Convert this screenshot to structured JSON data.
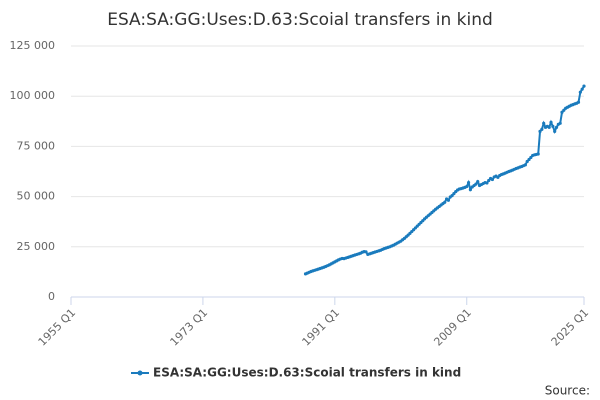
{
  "chart_data": {
    "type": "line",
    "title": "ESA:SA:GG:Uses:D.63:Scoial transfers in kind",
    "source": "Source:",
    "xlim": [
      1955,
      2025
    ],
    "xticks": [
      {
        "value": 1955,
        "label": "1955 Q1"
      },
      {
        "value": 1973,
        "label": "1973 Q1"
      },
      {
        "value": 1991,
        "label": "1991 Q1"
      },
      {
        "value": 2009,
        "label": "2009 Q1"
      },
      {
        "value": 2025,
        "label": "2025 Q1"
      }
    ],
    "ylim": [
      0,
      125000
    ],
    "yticks": [
      0,
      {
        "value": 25000,
        "label": "25 000"
      },
      {
        "value": 50000,
        "label": "50 000"
      },
      {
        "value": 75000,
        "label": "75 000"
      },
      {
        "value": 100000,
        "label": "100 000"
      },
      {
        "value": 125000,
        "label": "125 000"
      }
    ],
    "grid": true,
    "legend": "bottom",
    "x": [
      1987,
      1987.25,
      1987.5,
      1987.75,
      1988,
      1988.25,
      1988.5,
      1988.75,
      1989,
      1989.25,
      1989.5,
      1989.75,
      1990,
      1990.25,
      1990.5,
      1990.75,
      1991,
      1991.25,
      1991.5,
      1991.75,
      1992,
      1992.25,
      1992.5,
      1992.75,
      1993,
      1993.25,
      1993.5,
      1993.75,
      1994,
      1994.25,
      1994.5,
      1994.75,
      1995,
      1995.25,
      1995.5,
      1995.75,
      1996,
      1996.25,
      1996.5,
      1996.75,
      1997,
      1997.25,
      1997.5,
      1997.75,
      1998,
      1998.25,
      1998.5,
      1998.75,
      1999,
      1999.25,
      1999.5,
      1999.75,
      2000,
      2000.25,
      2000.5,
      2000.75,
      2001,
      2001.25,
      2001.5,
      2001.75,
      2002,
      2002.25,
      2002.5,
      2002.75,
      2003,
      2003.25,
      2003.5,
      2003.75,
      2004,
      2004.25,
      2004.5,
      2004.75,
      2005,
      2005.25,
      2005.5,
      2005.75,
      2006,
      2006.25,
      2006.5,
      2006.75,
      2007,
      2007.25,
      2007.5,
      2007.75,
      2008,
      2008.25,
      2008.5,
      2008.75,
      2009,
      2009.25,
      2009.5,
      2009.75,
      2010,
      2010.25,
      2010.5,
      2010.75,
      2011,
      2011.25,
      2011.5,
      2011.75,
      2012,
      2012.25,
      2012.5,
      2012.75,
      2013,
      2013.25,
      2013.5,
      2013.75,
      2014,
      2014.25,
      2014.5,
      2014.75,
      2015,
      2015.25,
      2015.5,
      2015.75,
      2016,
      2016.25,
      2016.5,
      2016.75,
      2017,
      2017.25,
      2017.5,
      2017.75,
      2018,
      2018.25,
      2018.5,
      2018.75,
      2019,
      2019.25,
      2019.5,
      2019.75,
      2020,
      2020.25,
      2020.5,
      2020.75,
      2021,
      2021.25,
      2021.5,
      2021.75,
      2022,
      2022.25,
      2022.5,
      2022.75,
      2023,
      2023.25,
      2023.5,
      2023.75,
      2024,
      2024.25,
      2024.5,
      2024.75,
      2025
    ],
    "series": [
      {
        "name": "ESA:SA:GG:Uses:D.63:Scoial transfers in kind",
        "color": "#1a7bbd",
        "values": [
          11500,
          11900,
          12300,
          12700,
          13000,
          13300,
          13600,
          13900,
          14200,
          14500,
          14800,
          15200,
          15600,
          16000,
          16500,
          17000,
          17500,
          18000,
          18500,
          18900,
          19200,
          19100,
          19400,
          19700,
          20000,
          20300,
          20600,
          20900,
          21200,
          21500,
          21800,
          22300,
          22600,
          22500,
          21200,
          21500,
          21800,
          22100,
          22400,
          22700,
          23000,
          23300,
          23700,
          24100,
          24400,
          24700,
          25000,
          25400,
          25800,
          26300,
          26800,
          27300,
          27800,
          28500,
          29200,
          30000,
          30800,
          31700,
          32600,
          33500,
          34400,
          35300,
          36200,
          37100,
          38000,
          38900,
          39700,
          40500,
          41300,
          42100,
          42900,
          43700,
          44400,
          45100,
          45800,
          46500,
          47200,
          48800,
          48200,
          49800,
          50500,
          51500,
          52500,
          53300,
          53800,
          54000,
          54300,
          54600,
          55000,
          57000,
          53500,
          54800,
          55500,
          56200,
          57500,
          55500,
          56000,
          56500,
          57000,
          56800,
          58000,
          59000,
          58500,
          59800,
          60200,
          59600,
          60500,
          61000,
          61300,
          61700,
          62100,
          62500,
          62800,
          63200,
          63600,
          64000,
          64300,
          64700,
          65000,
          65400,
          65800,
          67500,
          68500,
          69500,
          70500,
          70800,
          71000,
          71200,
          82500,
          83500,
          86500,
          84500,
          85000,
          84500,
          87000,
          85000,
          82500,
          84500,
          86000,
          86500,
          92000,
          93000,
          94000,
          94500,
          95000,
          95500,
          95800,
          96200,
          96500,
          97000,
          102000,
          103500,
          105000
        ]
      }
    ]
  }
}
